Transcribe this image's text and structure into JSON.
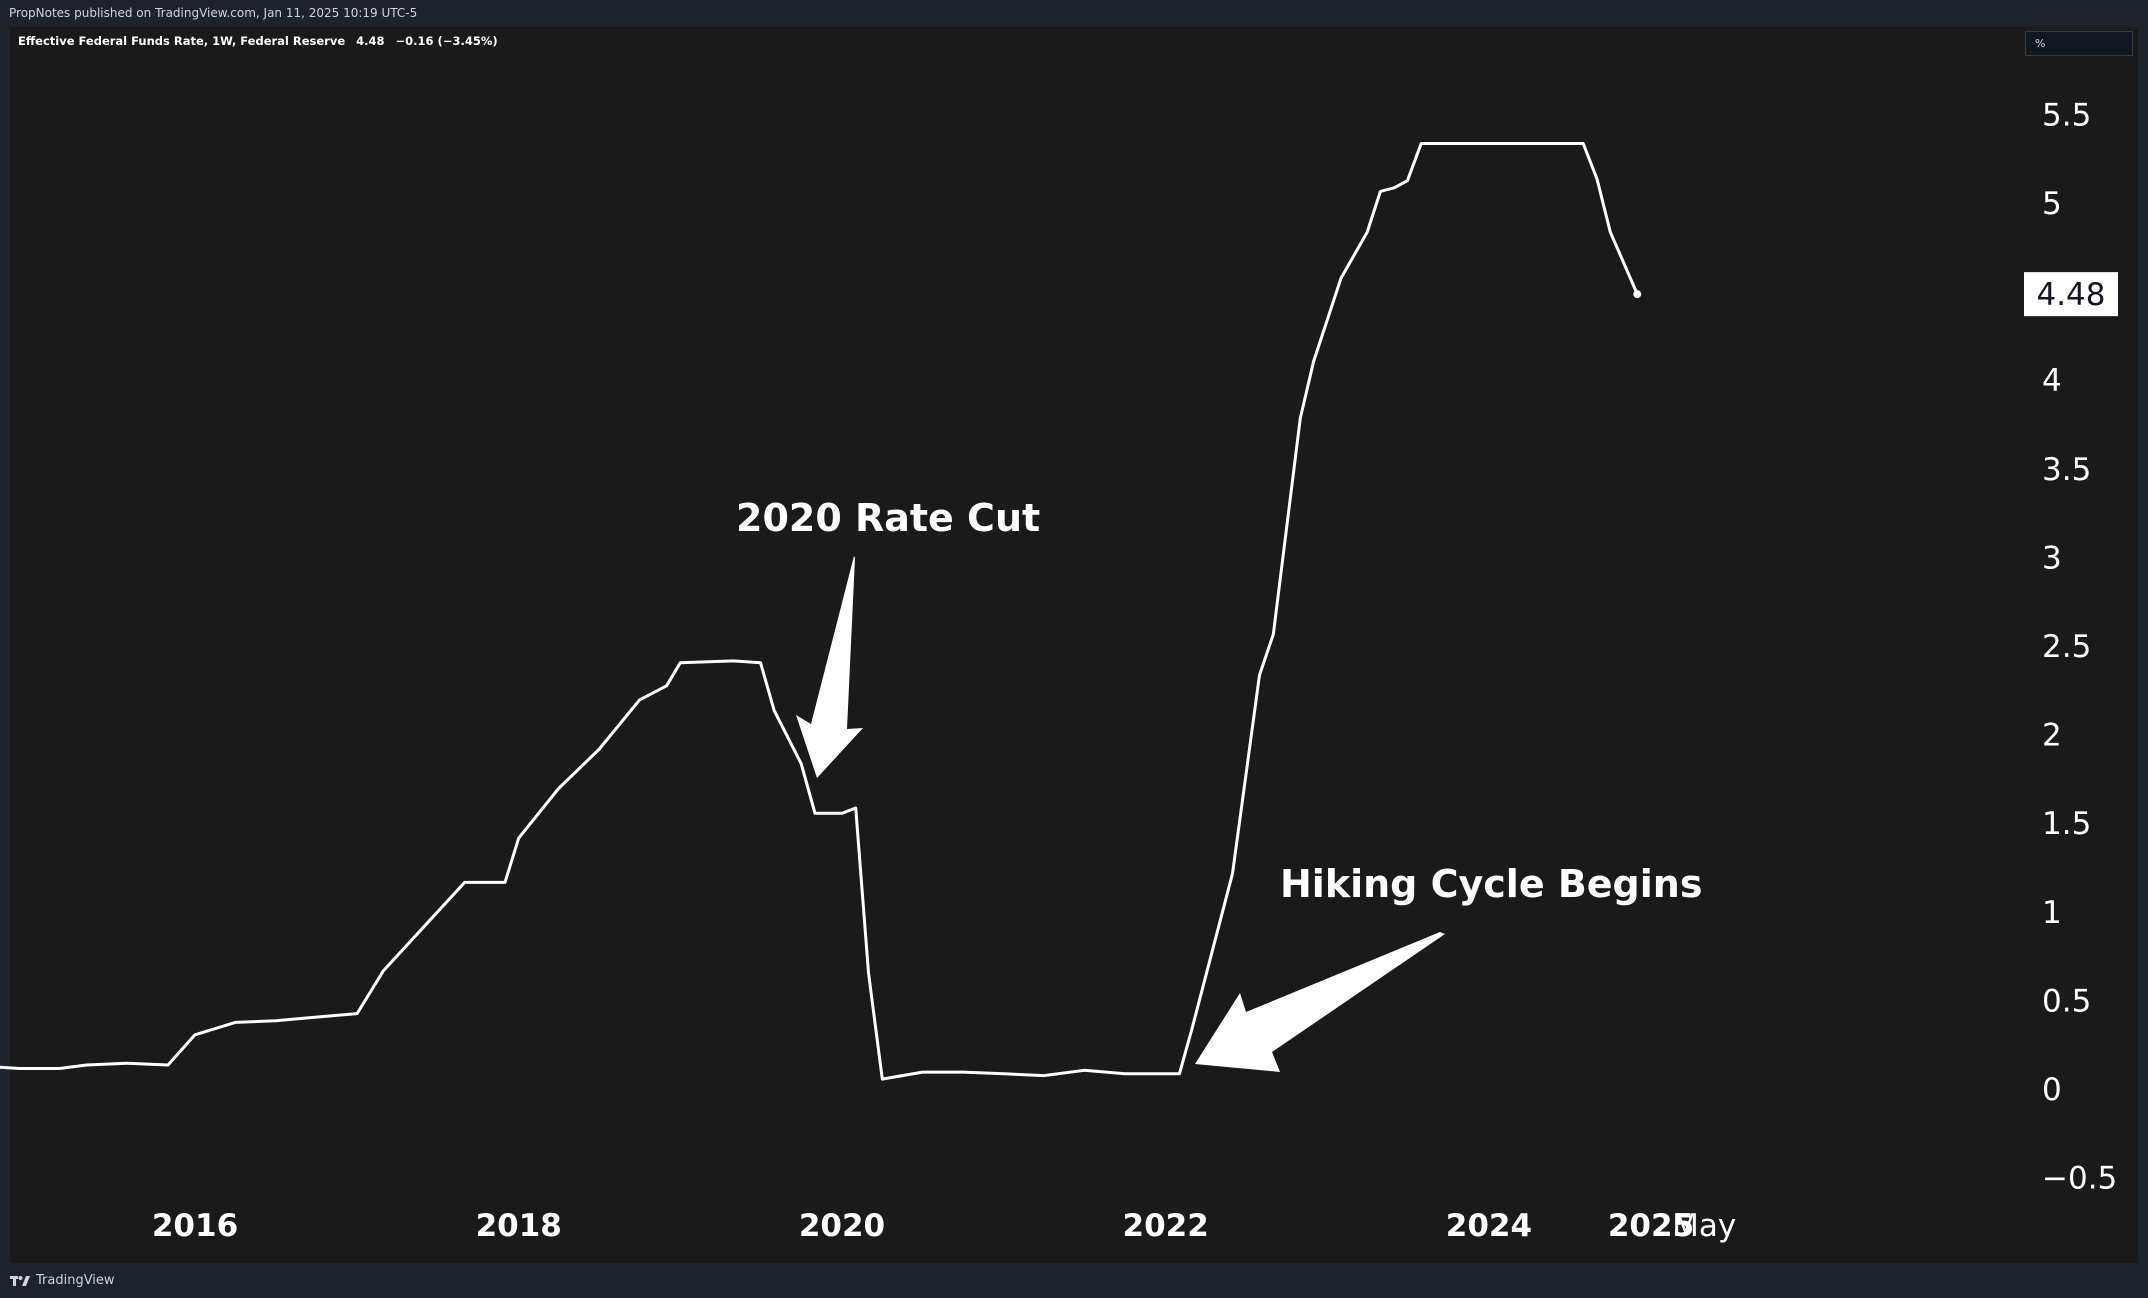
{
  "header": {
    "publisher_text": "PropNotes published on TradingView.com, Jan 11, 2025 10:19 UTC-5"
  },
  "legend": {
    "series_name": "Effective Federal Funds Rate, 1W, Federal Reserve",
    "last_value": "4.48",
    "change": "−0.16 (−3.45%)"
  },
  "unit_box": {
    "label": "%"
  },
  "footer": {
    "brand": "TradingView",
    "logo_icon": "tradingview-logo-icon"
  },
  "colors": {
    "background": "#1a1a1a",
    "line": "#ffffff",
    "chrome": "#1e222d",
    "text": "#ffffff"
  },
  "chart_data": {
    "type": "line",
    "title": "Effective Federal Funds Rate, 1W, Federal Reserve",
    "ylabel": "%",
    "ylim": [
      -0.5,
      5.5
    ],
    "y_ticks": [
      "5.5",
      "5",
      "4",
      "3.5",
      "3",
      "2.5",
      "2",
      "1.5",
      "1",
      "0.5",
      "0",
      "−0.5"
    ],
    "x_ticks": [
      {
        "label": "2016",
        "x": "2016-01-01"
      },
      {
        "label": "2018",
        "x": "2018-01-01"
      },
      {
        "label": "2020",
        "x": "2020-01-01"
      },
      {
        "label": "2022",
        "x": "2022-01-01"
      },
      {
        "label": "2024",
        "x": "2024-01-01"
      },
      {
        "label": "2025",
        "x": "2025-01-01"
      },
      {
        "label": "May",
        "x": "2025-05-01"
      }
    ],
    "last_value_label": "4.48",
    "grid": false,
    "series": [
      {
        "name": "Effective Federal Funds Rate",
        "points": [
          [
            "2014-10-01",
            0.12
          ],
          [
            "2014-12-01",
            0.11
          ],
          [
            "2015-03-01",
            0.11
          ],
          [
            "2015-05-01",
            0.13
          ],
          [
            "2015-08-01",
            0.14
          ],
          [
            "2015-11-01",
            0.13
          ],
          [
            "2016-01-01",
            0.3
          ],
          [
            "2016-04-01",
            0.37
          ],
          [
            "2016-07-01",
            0.38
          ],
          [
            "2016-10-01",
            0.4
          ],
          [
            "2017-01-01",
            0.42
          ],
          [
            "2017-03-01",
            0.66
          ],
          [
            "2017-06-01",
            0.91
          ],
          [
            "2017-09-01",
            1.16
          ],
          [
            "2017-12-01",
            1.16
          ],
          [
            "2018-01-01",
            1.41
          ],
          [
            "2018-04-01",
            1.69
          ],
          [
            "2018-07-01",
            1.91
          ],
          [
            "2018-10-01",
            2.19
          ],
          [
            "2018-12-01",
            2.27
          ],
          [
            "2019-01-01",
            2.4
          ],
          [
            "2019-05-01",
            2.41
          ],
          [
            "2019-07-01",
            2.4
          ],
          [
            "2019-08-01",
            2.13
          ],
          [
            "2019-10-01",
            1.83
          ],
          [
            "2019-11-01",
            1.55
          ],
          [
            "2020-01-01",
            1.55
          ],
          [
            "2020-02-01",
            1.58
          ],
          [
            "2020-03-01",
            0.65
          ],
          [
            "2020-04-01",
            0.05
          ],
          [
            "2020-07-01",
            0.09
          ],
          [
            "2020-10-01",
            0.09
          ],
          [
            "2021-01-01",
            0.08
          ],
          [
            "2021-04-01",
            0.07
          ],
          [
            "2021-07-01",
            0.1
          ],
          [
            "2021-10-01",
            0.08
          ],
          [
            "2021-12-01",
            0.08
          ],
          [
            "2022-02-01",
            0.08
          ],
          [
            "2022-03-01",
            0.33
          ],
          [
            "2022-06-01",
            1.21
          ],
          [
            "2022-08-01",
            2.33
          ],
          [
            "2022-09-01",
            2.56
          ],
          [
            "2022-11-01",
            3.78
          ],
          [
            "2022-12-01",
            4.1
          ],
          [
            "2023-02-01",
            4.57
          ],
          [
            "2023-04-01",
            4.83
          ],
          [
            "2023-05-01",
            5.06
          ],
          [
            "2023-06-01",
            5.08
          ],
          [
            "2023-07-01",
            5.12
          ],
          [
            "2023-08-01",
            5.33
          ],
          [
            "2024-08-01",
            5.33
          ],
          [
            "2024-09-01",
            5.13
          ],
          [
            "2024-10-01",
            4.83
          ],
          [
            "2024-12-01",
            4.48
          ]
        ]
      }
    ],
    "annotations": [
      {
        "text": "2020 Rate Cut"
      },
      {
        "text": "Hiking Cycle Begins"
      }
    ]
  }
}
